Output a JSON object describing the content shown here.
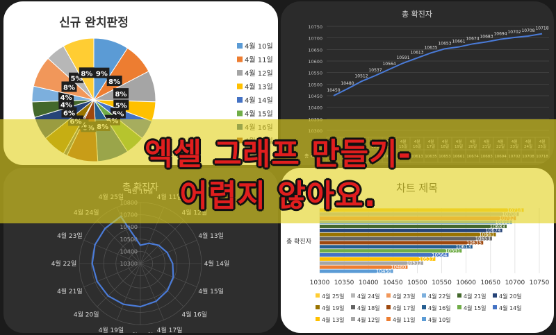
{
  "chart_data": [
    {
      "type": "pie",
      "title": "신규 완치판정",
      "categories": [
        "4월 10일",
        "4월 11일",
        "4월 12일",
        "4월 13일",
        "4월 14일",
        "4월 15일",
        "4월 16일",
        "4월 17일",
        "4월 18일",
        "4월 19일",
        "4월 20일",
        "4월 21일",
        "4월 22일",
        "4월 23일",
        "4월 24일",
        "4월 25일"
      ],
      "values": [
        9,
        8,
        8,
        5,
        5,
        5,
        8,
        8,
        1,
        6,
        6,
        4,
        4,
        8,
        5,
        8
      ],
      "data_labels": [
        "9%",
        "8%",
        "8%",
        "5%",
        "5%",
        "5%",
        "8%",
        "8%",
        "1%",
        "6%",
        "6%",
        "4%",
        "4%",
        "8%",
        "5%",
        "8%"
      ],
      "legend_visible": [
        "4월 10일",
        "4월 11일",
        "4월 12일",
        "4월 13일",
        "4월 14일",
        "4월 15일",
        "4월 16일",
        "4월 17일"
      ],
      "legend_position": "right"
    },
    {
      "type": "line",
      "title": "총 확진자",
      "categories": [
        "4월 10일",
        "4월 11일",
        "4월 12일",
        "4월 13일",
        "4월 14일",
        "4월 15일",
        "4월 16일",
        "4월 17일",
        "4월 18일",
        "4월 19일",
        "4월 20일",
        "4월 21일",
        "4월 22일",
        "4월 23일",
        "4월 24일",
        "4월 25일"
      ],
      "values": [
        10450,
        10480,
        10512,
        10537,
        10564,
        10591,
        10613,
        10635,
        10653,
        10661,
        10674,
        10683,
        10694,
        10702,
        10708,
        10718
      ],
      "yticks": [
        10300,
        10350,
        10400,
        10450,
        10500,
        10550,
        10600,
        10650,
        10700,
        10750
      ],
      "ylim": [
        10300,
        10750
      ],
      "table_row_label": "총 확진자",
      "table_values_visible": [
        "10564",
        "10591",
        "10613",
        "10635",
        "10653",
        "10661",
        "10674",
        "10683",
        "10694",
        "10702",
        "10708",
        "10718"
      ],
      "grid": true
    },
    {
      "type": "radar",
      "title": "총 확진자",
      "categories": [
        "4월 10일",
        "4월 11일",
        "4월 12일",
        "4월 13일",
        "4월 14일",
        "4월 15일",
        "4월 16일",
        "4월 17일",
        "4월 18일",
        "4월 19일",
        "4월 20일",
        "4월 21일",
        "4월 22일",
        "4월 23일",
        "4월 24일",
        "4월 25일"
      ],
      "values": [
        10450,
        10480,
        10512,
        10537,
        10564,
        10591,
        10613,
        10635,
        10653,
        10661,
        10674,
        10683,
        10694,
        10702,
        10708,
        10718
      ],
      "rticks": [
        10300,
        10400,
        10500,
        10600,
        10700,
        10800
      ],
      "rlim": [
        10300,
        10800
      ]
    },
    {
      "type": "bar",
      "orientation": "horizontal",
      "title": "차트 제목",
      "ylabel": "총 확진자",
      "series": [
        {
          "name": "4월 10일",
          "value": 10450,
          "color": "#5b9bd5"
        },
        {
          "name": "4월 11일",
          "value": 10480,
          "color": "#ed7d31"
        },
        {
          "name": "4월 12일",
          "value": 10512,
          "color": "#a5a5a5"
        },
        {
          "name": "4월 13일",
          "value": 10537,
          "color": "#ffc000"
        },
        {
          "name": "4월 14일",
          "value": 10564,
          "color": "#4472c4"
        },
        {
          "name": "4월 15일",
          "value": 10591,
          "color": "#70ad47"
        },
        {
          "name": "4월 16일",
          "value": 10613,
          "color": "#255e91"
        },
        {
          "name": "4월 17일",
          "value": 10635,
          "color": "#9e480e"
        },
        {
          "name": "4월 18일",
          "value": 10653,
          "color": "#636363"
        },
        {
          "name": "4월 19일",
          "value": 10661,
          "color": "#997300"
        },
        {
          "name": "4월 20일",
          "value": 10674,
          "color": "#264478"
        },
        {
          "name": "4월 21일",
          "value": 10683,
          "color": "#43682b"
        },
        {
          "name": "4월 22일",
          "value": 10694,
          "color": "#7cafdd"
        },
        {
          "name": "4월 23일",
          "value": 10702,
          "color": "#f1975a"
        },
        {
          "name": "4월 24일",
          "value": 10708,
          "color": "#b7b7b7"
        },
        {
          "name": "4월 25일",
          "value": 10718,
          "color": "#ffcd33"
        }
      ],
      "xticks": [
        10300,
        10350,
        10400,
        10450,
        10500,
        10550,
        10600,
        10650,
        10700,
        10750
      ],
      "xlim": [
        10300,
        10750
      ],
      "legend_order": [
        "4월 25일",
        "4월 24일",
        "4월 23일",
        "4월 22일",
        "4월 21일",
        "4월 20일",
        "4월 19일",
        "4월 18일",
        "4월 17일",
        "4월 16일",
        "4월 15일",
        "4월 14일",
        "4월 13일",
        "4월 12일",
        "4월 11일",
        "4월 10일"
      ],
      "legend_position": "bottom"
    }
  ],
  "overlay": {
    "line1": "엑셀 그래프 만들기",
    "line1_suffix": "-",
    "line2": "어렵지 않아요."
  },
  "palette": [
    "#5b9bd5",
    "#ed7d31",
    "#a5a5a5",
    "#ffc000",
    "#4472c4",
    "#70ad47",
    "#255e91",
    "#9e480e",
    "#636363",
    "#997300",
    "#264478",
    "#43682b",
    "#7cafdd",
    "#f1975a",
    "#b7b7b7",
    "#ffcd33"
  ]
}
